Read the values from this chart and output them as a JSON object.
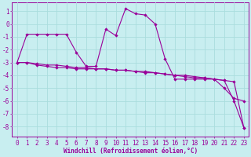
{
  "xlabel": "Windchill (Refroidissement éolien,°C)",
  "background_color": "#c8eef0",
  "grid_color": "#aadddd",
  "line_color": "#990099",
  "x_values": [
    0,
    1,
    2,
    3,
    4,
    5,
    6,
    7,
    8,
    9,
    10,
    11,
    12,
    13,
    14,
    15,
    16,
    17,
    18,
    19,
    20,
    21,
    22,
    23
  ],
  "y_line1": [
    -3.0,
    -0.8,
    -0.8,
    -0.8,
    -0.8,
    -0.8,
    -2.2,
    -3.3,
    -3.3,
    -0.4,
    -0.9,
    1.2,
    0.8,
    0.7,
    0.0,
    -2.7,
    -4.3,
    -4.3,
    -4.3,
    -4.3,
    -4.3,
    -5.0,
    -5.8,
    -6.0
  ],
  "y_line2": [
    -3.0,
    -3.0,
    -3.1,
    -3.2,
    -3.2,
    -3.3,
    -3.4,
    -3.4,
    -3.5,
    -3.5,
    -3.6,
    -3.6,
    -3.7,
    -3.7,
    -3.8,
    -3.9,
    -4.0,
    -4.1,
    -4.2,
    -4.2,
    -4.3,
    -4.4,
    -4.5,
    -8.1
  ],
  "y_line3": [
    -3.0,
    -3.0,
    -3.2,
    -3.3,
    -3.4,
    -3.4,
    -3.5,
    -3.5,
    -3.5,
    -3.5,
    -3.6,
    -3.6,
    -3.7,
    -3.8,
    -3.8,
    -3.9,
    -4.0,
    -4.0,
    -4.1,
    -4.2,
    -4.3,
    -4.4,
    -6.0,
    -8.1
  ],
  "ylim": [
    -8.8,
    1.7
  ],
  "xlim": [
    -0.5,
    23.5
  ],
  "yticks": [
    1,
    0,
    -1,
    -2,
    -3,
    -4,
    -5,
    -6,
    -7,
    -8
  ],
  "xticks": [
    0,
    1,
    2,
    3,
    4,
    5,
    6,
    7,
    8,
    9,
    10,
    11,
    12,
    13,
    14,
    15,
    16,
    17,
    18,
    19,
    20,
    21,
    22,
    23
  ],
  "xlabel_fontsize": 5.5,
  "tick_fontsize": 5.5
}
